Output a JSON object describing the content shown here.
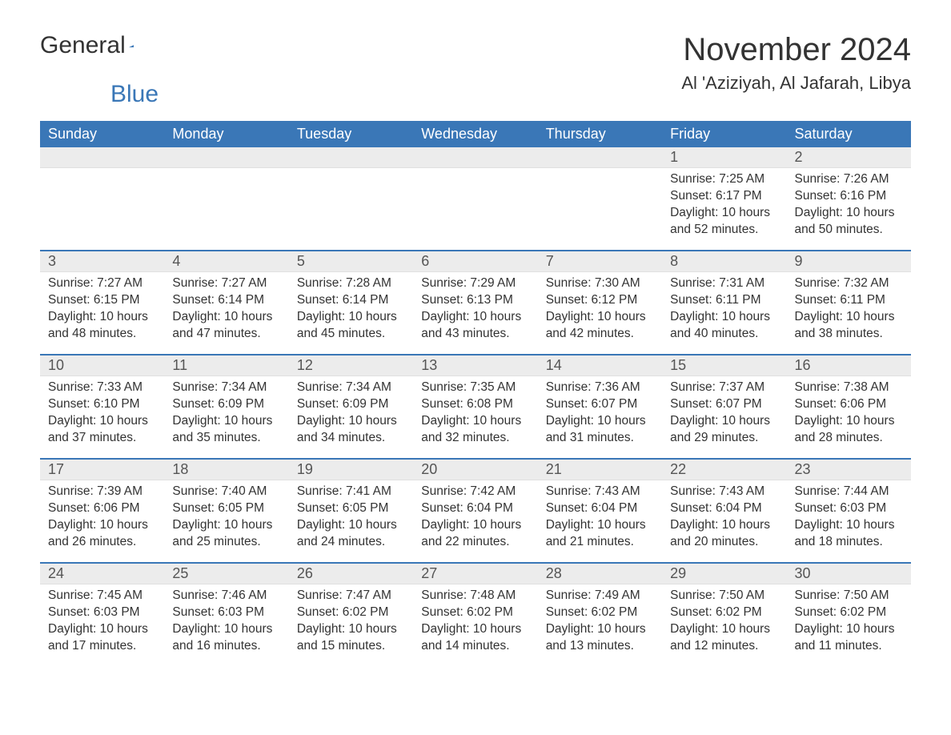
{
  "brand": {
    "part1": "General",
    "part2": "Blue",
    "logo_color": "#3a77b7"
  },
  "title": "November 2024",
  "location": "Al 'Aziziyah, Al Jafarah, Libya",
  "colors": {
    "header_bg": "#3a77b7",
    "header_text": "#ffffff",
    "daynum_bg": "#ececec",
    "text": "#333333",
    "border": "#3a77b7"
  },
  "weekdays": [
    "Sunday",
    "Monday",
    "Tuesday",
    "Wednesday",
    "Thursday",
    "Friday",
    "Saturday"
  ],
  "weeks": [
    [
      null,
      null,
      null,
      null,
      null,
      {
        "d": "1",
        "sr": "7:25 AM",
        "ss": "6:17 PM",
        "dl": "10 hours and 52 minutes."
      },
      {
        "d": "2",
        "sr": "7:26 AM",
        "ss": "6:16 PM",
        "dl": "10 hours and 50 minutes."
      }
    ],
    [
      {
        "d": "3",
        "sr": "7:27 AM",
        "ss": "6:15 PM",
        "dl": "10 hours and 48 minutes."
      },
      {
        "d": "4",
        "sr": "7:27 AM",
        "ss": "6:14 PM",
        "dl": "10 hours and 47 minutes."
      },
      {
        "d": "5",
        "sr": "7:28 AM",
        "ss": "6:14 PM",
        "dl": "10 hours and 45 minutes."
      },
      {
        "d": "6",
        "sr": "7:29 AM",
        "ss": "6:13 PM",
        "dl": "10 hours and 43 minutes."
      },
      {
        "d": "7",
        "sr": "7:30 AM",
        "ss": "6:12 PM",
        "dl": "10 hours and 42 minutes."
      },
      {
        "d": "8",
        "sr": "7:31 AM",
        "ss": "6:11 PM",
        "dl": "10 hours and 40 minutes."
      },
      {
        "d": "9",
        "sr": "7:32 AM",
        "ss": "6:11 PM",
        "dl": "10 hours and 38 minutes."
      }
    ],
    [
      {
        "d": "10",
        "sr": "7:33 AM",
        "ss": "6:10 PM",
        "dl": "10 hours and 37 minutes."
      },
      {
        "d": "11",
        "sr": "7:34 AM",
        "ss": "6:09 PM",
        "dl": "10 hours and 35 minutes."
      },
      {
        "d": "12",
        "sr": "7:34 AM",
        "ss": "6:09 PM",
        "dl": "10 hours and 34 minutes."
      },
      {
        "d": "13",
        "sr": "7:35 AM",
        "ss": "6:08 PM",
        "dl": "10 hours and 32 minutes."
      },
      {
        "d": "14",
        "sr": "7:36 AM",
        "ss": "6:07 PM",
        "dl": "10 hours and 31 minutes."
      },
      {
        "d": "15",
        "sr": "7:37 AM",
        "ss": "6:07 PM",
        "dl": "10 hours and 29 minutes."
      },
      {
        "d": "16",
        "sr": "7:38 AM",
        "ss": "6:06 PM",
        "dl": "10 hours and 28 minutes."
      }
    ],
    [
      {
        "d": "17",
        "sr": "7:39 AM",
        "ss": "6:06 PM",
        "dl": "10 hours and 26 minutes."
      },
      {
        "d": "18",
        "sr": "7:40 AM",
        "ss": "6:05 PM",
        "dl": "10 hours and 25 minutes."
      },
      {
        "d": "19",
        "sr": "7:41 AM",
        "ss": "6:05 PM",
        "dl": "10 hours and 24 minutes."
      },
      {
        "d": "20",
        "sr": "7:42 AM",
        "ss": "6:04 PM",
        "dl": "10 hours and 22 minutes."
      },
      {
        "d": "21",
        "sr": "7:43 AM",
        "ss": "6:04 PM",
        "dl": "10 hours and 21 minutes."
      },
      {
        "d": "22",
        "sr": "7:43 AM",
        "ss": "6:04 PM",
        "dl": "10 hours and 20 minutes."
      },
      {
        "d": "23",
        "sr": "7:44 AM",
        "ss": "6:03 PM",
        "dl": "10 hours and 18 minutes."
      }
    ],
    [
      {
        "d": "24",
        "sr": "7:45 AM",
        "ss": "6:03 PM",
        "dl": "10 hours and 17 minutes."
      },
      {
        "d": "25",
        "sr": "7:46 AM",
        "ss": "6:03 PM",
        "dl": "10 hours and 16 minutes."
      },
      {
        "d": "26",
        "sr": "7:47 AM",
        "ss": "6:02 PM",
        "dl": "10 hours and 15 minutes."
      },
      {
        "d": "27",
        "sr": "7:48 AM",
        "ss": "6:02 PM",
        "dl": "10 hours and 14 minutes."
      },
      {
        "d": "28",
        "sr": "7:49 AM",
        "ss": "6:02 PM",
        "dl": "10 hours and 13 minutes."
      },
      {
        "d": "29",
        "sr": "7:50 AM",
        "ss": "6:02 PM",
        "dl": "10 hours and 12 minutes."
      },
      {
        "d": "30",
        "sr": "7:50 AM",
        "ss": "6:02 PM",
        "dl": "10 hours and 11 minutes."
      }
    ]
  ],
  "labels": {
    "sunrise": "Sunrise: ",
    "sunset": "Sunset: ",
    "daylight": "Daylight: "
  }
}
